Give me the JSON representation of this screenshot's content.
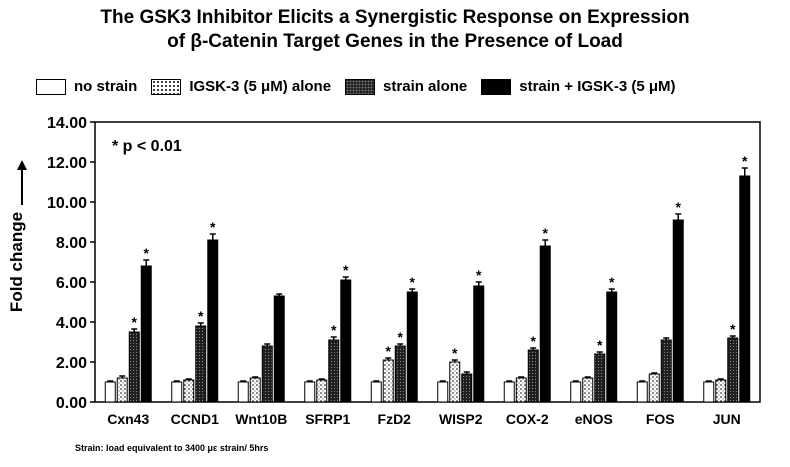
{
  "title_line1": "The GSK3 Inhibitor Elicits a Synergistic Response on Expression",
  "title_line2": "of β-Catenin Target Genes in the Presence of Load",
  "legend": [
    "no strain",
    "IGSK-3 (5 μM) alone",
    "strain alone",
    "strain + IGSK-3 (5 μM)"
  ],
  "annotation": "* p < 0.01",
  "footnote": "Strain: load equivalent to 3400 με strain/ 5hrs",
  "chart_data": {
    "type": "bar",
    "ylabel": "Fold change",
    "ylim": [
      0,
      14
    ],
    "yticks": [
      "0.00",
      "2.00",
      "4.00",
      "6.00",
      "8.00",
      "10.00",
      "12.00",
      "14.00"
    ],
    "categories": [
      "Cxn43",
      "CCND1",
      "Wnt10B",
      "SFRP1",
      "FzD2",
      "WISP2",
      "COX-2",
      "eNOS",
      "FOS",
      "JUN"
    ],
    "series": [
      {
        "name": "no strain",
        "values": [
          1.0,
          1.0,
          1.0,
          1.0,
          1.0,
          1.0,
          1.0,
          1.0,
          1.0,
          1.0
        ]
      },
      {
        "name": "IGSK-3 (5 μM) alone",
        "values": [
          1.2,
          1.1,
          1.2,
          1.1,
          2.1,
          2.0,
          1.2,
          1.2,
          1.4,
          1.1
        ]
      },
      {
        "name": "strain alone",
        "values": [
          3.5,
          3.8,
          2.8,
          3.1,
          2.8,
          1.4,
          2.6,
          2.4,
          3.1,
          3.2
        ]
      },
      {
        "name": "strain + IGSK-3 (5 μM)",
        "values": [
          6.8,
          8.1,
          5.3,
          6.1,
          5.5,
          5.8,
          7.8,
          5.5,
          9.1,
          11.3
        ]
      }
    ],
    "errors": [
      [
        0.05,
        0.05,
        0.05,
        0.05,
        0.05,
        0.05,
        0.05,
        0.05,
        0.05,
        0.05
      ],
      [
        0.1,
        0.05,
        0.05,
        0.05,
        0.1,
        0.1,
        0.05,
        0.05,
        0.05,
        0.05
      ],
      [
        0.15,
        0.15,
        0.1,
        0.15,
        0.1,
        0.1,
        0.1,
        0.1,
        0.1,
        0.1
      ],
      [
        0.3,
        0.3,
        0.1,
        0.15,
        0.15,
        0.2,
        0.3,
        0.15,
        0.3,
        0.4
      ]
    ],
    "significant": [
      [
        false,
        false,
        false,
        false,
        false,
        false,
        false,
        false,
        false,
        false
      ],
      [
        false,
        false,
        false,
        false,
        true,
        true,
        false,
        false,
        false,
        false
      ],
      [
        true,
        true,
        false,
        true,
        true,
        false,
        true,
        true,
        false,
        true
      ],
      [
        true,
        true,
        false,
        true,
        true,
        true,
        true,
        true,
        true,
        true
      ]
    ],
    "significance_marker": "*",
    "colors": [
      "#ffffff",
      "#eeeeee",
      "#2a2a2a",
      "#000000"
    ]
  }
}
